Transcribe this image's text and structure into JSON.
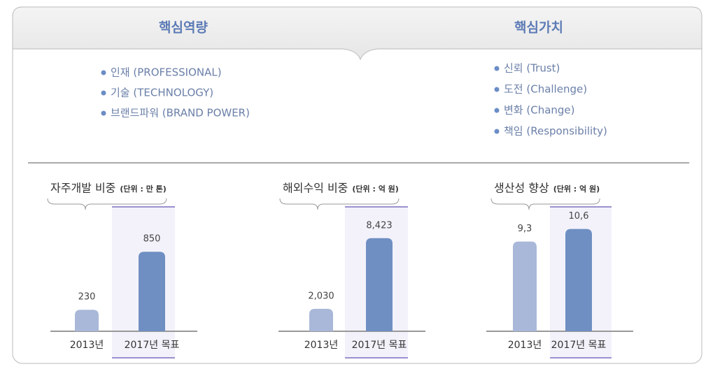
{
  "header": {
    "left_title": "핵심역량",
    "right_title": "핵심가치"
  },
  "competencies": [
    "인재 (PROFESSIONAL)",
    "기술 (TECHNOLOGY)",
    "브랜드파워 (BRAND POWER)"
  ],
  "core_values": [
    "신뢰 (Trust)",
    "도전 (Challenge)",
    "변화 (Change)",
    "책임 (Responsibility)"
  ],
  "chart_data": [
    {
      "type": "bar",
      "title": "자주개발 비중",
      "unit": "(단위 : 만 톤)",
      "categories": [
        "2013년",
        "2017년 목표"
      ],
      "values": [
        230,
        850
      ],
      "colors": [
        "#a9b8d8",
        "#6f8fc2"
      ],
      "ylim": [
        0,
        1300
      ]
    },
    {
      "type": "bar",
      "title": "해외수익 비중",
      "unit": "(단위 : 억 원)",
      "categories": [
        "2013년",
        "2017년 목표"
      ],
      "values": [
        2030,
        8423
      ],
      "value_labels": [
        "2,030",
        "8,423"
      ],
      "colors": [
        "#a9b8d8",
        "#6f8fc2"
      ],
      "ylim": [
        0,
        11000
      ]
    },
    {
      "type": "bar",
      "title": "생산성 향상",
      "unit": "(단위 : 억 원)",
      "categories": [
        "2013년",
        "2017년 목표"
      ],
      "values": [
        9.3,
        10.6
      ],
      "value_labels": [
        "9,3",
        "10,6"
      ],
      "colors": [
        "#a9b8d8",
        "#6f8fc2"
      ],
      "ylim": [
        0,
        12.6
      ]
    }
  ]
}
